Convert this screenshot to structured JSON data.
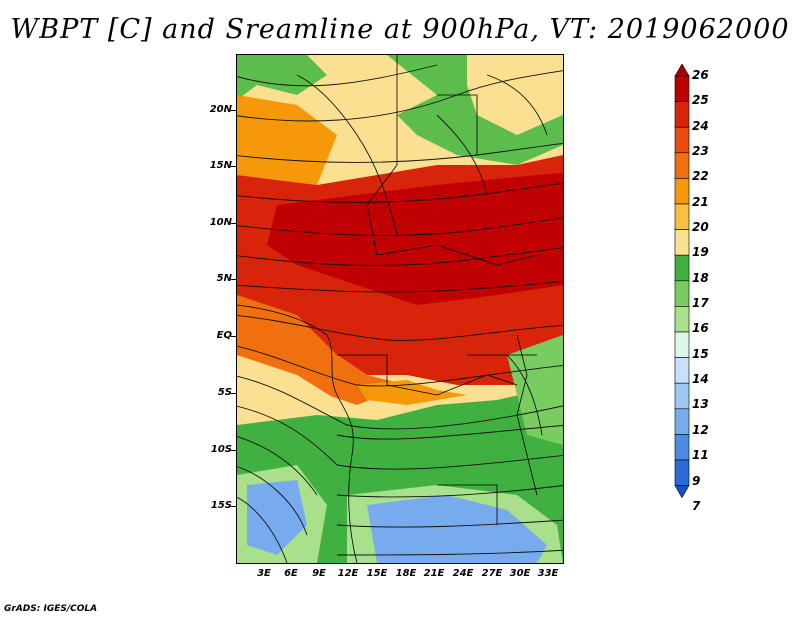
{
  "title": "WBPT [C] and Sreamline at 900hPa, VT: 2019062000",
  "footer": "GrADS: IGES/COLA",
  "lat_labels": [
    "20N",
    "15N",
    "10N",
    "5N",
    "EQ",
    "5S",
    "10S",
    "15S"
  ],
  "lon_labels": [
    "3E",
    "6E",
    "9E",
    "12E",
    "15E",
    "18E",
    "21E",
    "24E",
    "27E",
    "30E",
    "33E"
  ],
  "colorbar": {
    "labels": [
      "26",
      "25",
      "24",
      "23",
      "22",
      "21",
      "20",
      "19",
      "18",
      "17",
      "16",
      "15",
      "14",
      "13",
      "12",
      "11",
      "9",
      "7"
    ],
    "colors": [
      "#a50000",
      "#c00000",
      "#d8240a",
      "#e84a10",
      "#f07010",
      "#f5980a",
      "#f8c040",
      "#fae090",
      "#40b040",
      "#78cc60",
      "#a8e08c",
      "#dff5e8",
      "#c8e0fa",
      "#a0c8f4",
      "#78aaee",
      "#4c8ae4",
      "#2c6ad8",
      "#1c50c8"
    ]
  },
  "map": {
    "field": "wet-bulb potential temperature",
    "units": "C",
    "level": "900hPa",
    "valid_time": "2019062000",
    "overlay": "streamlines"
  }
}
